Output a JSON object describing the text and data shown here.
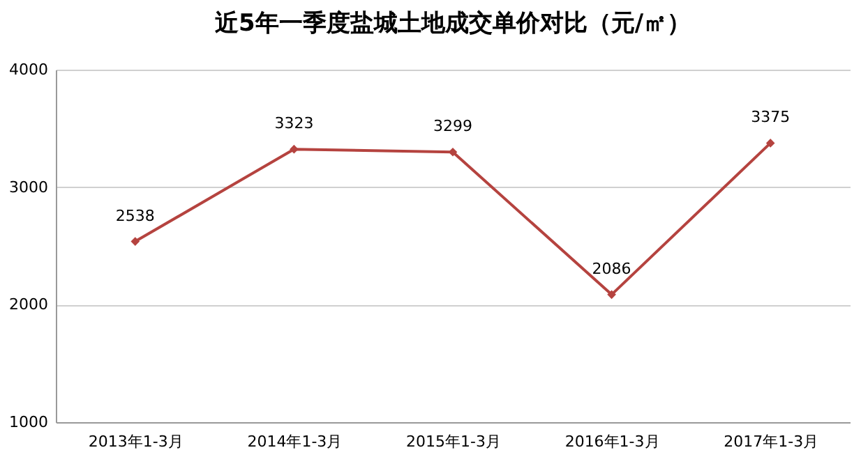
{
  "chart_data": {
    "type": "line",
    "title": "近5年一季度盐城土地成交单价对比（元/㎡）",
    "categories": [
      "2013年1-3月",
      "2014年1-3月",
      "2015年1-3月",
      "2016年1-3月",
      "2017年1-3月"
    ],
    "series": [
      {
        "color": "#b5433f",
        "values": [
          2538,
          3323,
          3299,
          2086,
          3375
        ]
      }
    ],
    "ylim": [
      1000,
      4000
    ],
    "yticks": [
      1000,
      2000,
      3000,
      4000
    ],
    "grid": "y",
    "marker": "diamond",
    "data_labels": true
  }
}
